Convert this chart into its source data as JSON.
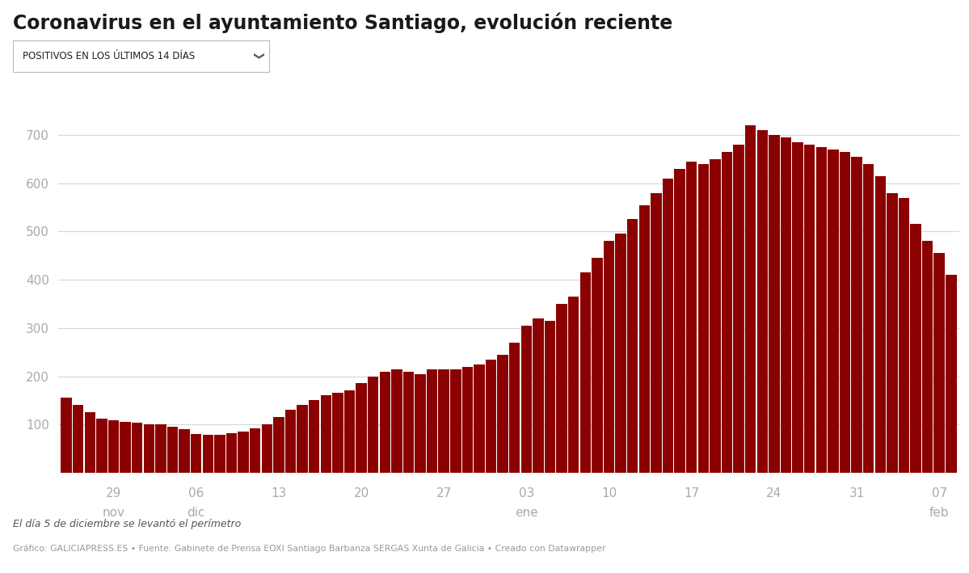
{
  "title": "Coronavirus en el ayuntamiento Santiago, evolución reciente",
  "dropdown_label": "POSITIVOS EN LOS ÚLTIMOS 14 DÍAS",
  "bar_color": "#8B0000",
  "background_color": "#ffffff",
  "grid_color": "#d8d8d8",
  "title_color": "#1a1a1a",
  "tick_label_color": "#aaaaaa",
  "footnote1": "El día 5 de diciembre se levantó el perímetro",
  "footnote2": "Gráfico: GALICIAPRESS.ES • Fuente: Gabinete de Prensa EOXI Santiago Barbanza SERGAS Xunta de Galicia • Creado con Datawrapper",
  "ylim": [
    0,
    760
  ],
  "yticks": [
    100,
    200,
    300,
    400,
    500,
    600,
    700
  ],
  "values": [
    155,
    140,
    125,
    112,
    108,
    105,
    103,
    100,
    100,
    95,
    90,
    80,
    78,
    78,
    82,
    85,
    92,
    100,
    115,
    130,
    140,
    150,
    160,
    165,
    170,
    185,
    200,
    210,
    215,
    210,
    205,
    215,
    215,
    215,
    220,
    225,
    235,
    245,
    270,
    305,
    320,
    315,
    350,
    365,
    415,
    445,
    480,
    495,
    525,
    555,
    580,
    610,
    630,
    645,
    640,
    650,
    665,
    680,
    720,
    710,
    700,
    695,
    685,
    680,
    675,
    670,
    665,
    655,
    640,
    615,
    580,
    570,
    515,
    480,
    455,
    410
  ],
  "x_tick_positions": [
    4,
    11,
    18,
    25,
    32,
    39,
    46,
    53,
    60,
    67,
    74
  ],
  "x_tick_labels_line1": [
    "29",
    "06",
    "13",
    "20",
    "27",
    "03",
    "10",
    "17",
    "24",
    "31",
    "07"
  ],
  "x_tick_labels_line2": [
    "nov",
    "dic",
    "",
    "",
    "",
    "ene",
    "",
    "",
    "",
    "",
    "feb"
  ],
  "fig_width": 11.99,
  "fig_height": 7.09,
  "dpi": 100
}
